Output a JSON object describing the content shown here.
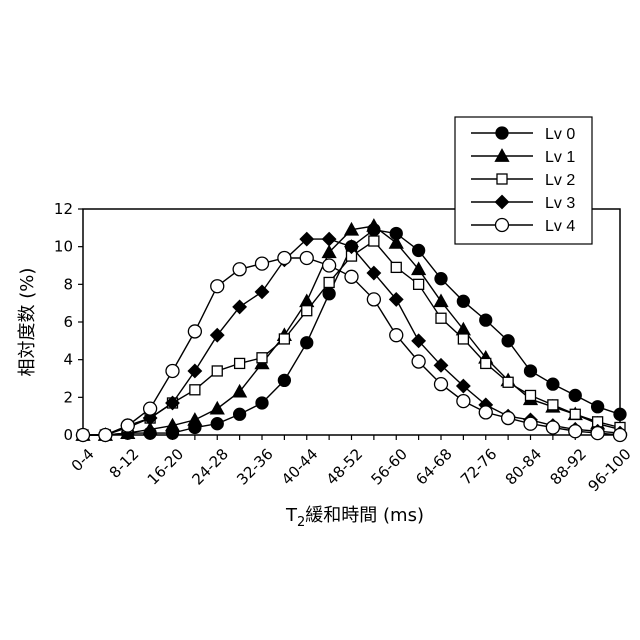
{
  "chart_data": {
    "type": "line",
    "xlabel": "T",
    "xlabel_sub": "2",
    "xlabel_rest": "緩和時間 (ms)",
    "ylabel": "相対度数 (%)",
    "ylim": [
      0,
      12
    ],
    "yticks": [
      0,
      2,
      4,
      6,
      8,
      10,
      12
    ],
    "ytick_labels": [
      "0",
      "2",
      "4",
      "6",
      "8",
      "10",
      "12"
    ],
    "grid": false,
    "legend_position": "top-right",
    "x": [
      "0-4",
      "4-8",
      "8-12",
      "12-16",
      "16-20",
      "20-24",
      "24-28",
      "28-32",
      "32-36",
      "36-40",
      "40-44",
      "44-48",
      "48-52",
      "52-56",
      "56-60",
      "60-64",
      "64-68",
      "68-72",
      "72-76",
      "76-80",
      "80-84",
      "84-88",
      "88-92",
      "92-96",
      "96-100"
    ],
    "x_tick_labels": [
      "0-4",
      "8-12",
      "16-20",
      "24-28",
      "32-36",
      "40-44",
      "48-52",
      "56-60",
      "64-68",
      "72-76",
      "80-84",
      "88-92",
      "96-100"
    ],
    "series": [
      {
        "name": "Lv 0",
        "marker": "filled-circle",
        "values": [
          0,
          0,
          0.1,
          0.1,
          0.1,
          0.4,
          0.6,
          1.1,
          1.7,
          2.9,
          4.9,
          7.5,
          10,
          10.9,
          10.7,
          9.8,
          8.3,
          7.1,
          6.1,
          5,
          3.4,
          2.7,
          2.1,
          1.5,
          1.1
        ]
      },
      {
        "name": "Lv 1",
        "marker": "filled-triangle",
        "values": [
          0,
          0,
          0.1,
          0.3,
          0.5,
          0.8,
          1.4,
          2.3,
          3.8,
          5.3,
          7.1,
          9.7,
          10.9,
          11.1,
          10.2,
          8.8,
          7.1,
          5.6,
          4.1,
          2.9,
          1.9,
          1.5,
          1.1,
          0.6,
          0.3
        ]
      },
      {
        "name": "Lv 2",
        "marker": "open-square",
        "values": [
          0,
          0,
          0.4,
          0.9,
          1.7,
          2.4,
          3.4,
          3.8,
          4.1,
          5.1,
          6.6,
          8.1,
          9.5,
          10.3,
          8.9,
          8,
          6.2,
          5.1,
          3.8,
          2.8,
          2.1,
          1.6,
          1.1,
          0.7,
          0.4
        ]
      },
      {
        "name": "Lv 3",
        "marker": "filled-diamond",
        "values": [
          0,
          0,
          0.5,
          0.9,
          1.7,
          3.4,
          5.3,
          6.8,
          7.6,
          9.3,
          10.4,
          10.4,
          10,
          8.6,
          7.2,
          5,
          3.7,
          2.6,
          1.6,
          1,
          0.8,
          0.5,
          0.3,
          0.2,
          0.1
        ]
      },
      {
        "name": "Lv 4",
        "marker": "open-circle",
        "values": [
          0,
          0,
          0.5,
          1.4,
          3.4,
          5.5,
          7.9,
          8.8,
          9.1,
          9.4,
          9.4,
          9,
          8.4,
          7.2,
          5.3,
          3.9,
          2.7,
          1.8,
          1.2,
          0.9,
          0.6,
          0.4,
          0.2,
          0.1,
          0
        ]
      }
    ]
  }
}
